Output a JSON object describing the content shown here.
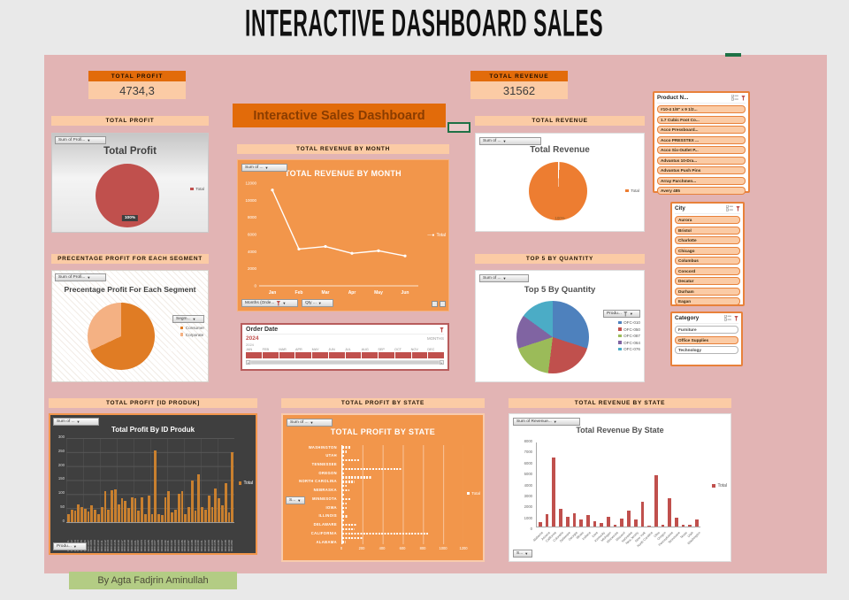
{
  "title": "INTERACTIVE DASHBOARD SALES",
  "banner": "Interactive Sales Dashboard",
  "credit": "By Agta Fadjrin Aminullah",
  "kpi": {
    "profit_label": "TOTAL PROFIT",
    "profit_value": "4734,3",
    "revenue_label": "TOTAL REVENUE",
    "revenue_value": "31562"
  },
  "section_labels": {
    "total_profit": "TOTAL PROFIT",
    "revenue_by_month": "TOTAL REVENUE BY MONTH",
    "total_revenue": "TOTAL REVENUE",
    "segment": "PRECENTAGE PROFIT FOR EACH SEGMENT",
    "top5": "TOP 5 BY QUANTITY",
    "profit_by_id": "Total Profit [ID Produk]",
    "profit_by_state": "Total Profit By State",
    "revenue_by_state": "Total Revenue By State"
  },
  "field_buttons": {
    "sum_of_profit": "Sum of Profi...",
    "sum_of": "Sum of ...",
    "sum_of_revenue": "Sum of Revenue...",
    "months_order": "Months (Orde...",
    "qty": "Qty ...",
    "produ": "Produ...",
    "segm": "Segm...",
    "s": "S..."
  },
  "timeline": {
    "title": "Order Date",
    "selected_period": "2024",
    "granularity": "MONTHS",
    "year": "2024",
    "months": [
      "JAN",
      "FEB",
      "MAR",
      "APR",
      "MAY",
      "JUN",
      "JUL",
      "AUG",
      "SEP",
      "OCT",
      "NOV",
      "DEC"
    ]
  },
  "slicers": {
    "product": {
      "title": "Product N...",
      "items": [
        "#10-4 1/8\" x 9 1/2...",
        "1.7 Cubic Foot Co...",
        "Acco Pressboard...",
        "Acco PRESSTEX ...",
        "Acco Six-Outlet P...",
        "Advantus 10-Dra...",
        "Advantus Push Pins",
        "Array Parchmen...",
        "Avery 485"
      ]
    },
    "city": {
      "title": "City",
      "items": [
        "Aurora",
        "Bristol",
        "Charlotte",
        "Chicago",
        "Columbus",
        "Concord",
        "Decatur",
        "Durham",
        "Eagan"
      ]
    },
    "category": {
      "title": "Category",
      "items": [
        {
          "label": "Furniture",
          "selected": false
        },
        {
          "label": "Office Supplies",
          "selected": true
        },
        {
          "label": "Technology",
          "selected": false
        }
      ]
    }
  },
  "colors": {
    "board_pink": "#e2b4b4",
    "orange_dark": "#E26B0A",
    "orange_mid": "#F2964B",
    "orange_light": "#FBCBA5",
    "red": "#C0504D",
    "excel_green": "#1E7145",
    "footer_green": "#b3cc84",
    "dark_chart_bg": "#3F3F3F"
  },
  "chart_data": [
    {
      "id": "profit-pie",
      "type": "pie",
      "title": "Total Profit",
      "slices": [
        {
          "label": "Total",
          "value": 100,
          "color": "#C0504D"
        }
      ],
      "data_labels": [
        "100%"
      ],
      "legend_position": "right"
    },
    {
      "id": "revenue-by-month",
      "type": "line",
      "title": "TOTAL REVENUE BY MONTH",
      "categories": [
        "Jan",
        "Feb",
        "Mar",
        "Apr",
        "May",
        "Jun"
      ],
      "series": [
        {
          "name": "Total",
          "values": [
            11200,
            4300,
            4600,
            3800,
            4100,
            3500
          ]
        }
      ],
      "ylim": [
        0,
        12000
      ],
      "ytick_step": 2000,
      "line_color": "#FFFFFF",
      "legend_position": "right"
    },
    {
      "id": "revenue-pie",
      "type": "pie",
      "title": "Total Revenue",
      "slices": [
        {
          "label": "Total",
          "value": 100,
          "color": "#ED7D31"
        }
      ],
      "data_labels": [
        "100%"
      ],
      "legend_position": "right"
    },
    {
      "id": "segment-pie",
      "type": "pie",
      "title": "Precentage Profit For Each Segment",
      "slices": [
        {
          "label": "Consumer",
          "value": 68,
          "color": "#E07C24"
        },
        {
          "label": "Corporate",
          "value": 32,
          "color": "#F4B183"
        }
      ],
      "data_labels": [
        "68%",
        "32%"
      ],
      "legend_position": "right"
    },
    {
      "id": "top5-pie",
      "type": "pie",
      "title": "Top 5 By Quantity",
      "slices": [
        {
          "label": "OFC-010",
          "value": 30,
          "color": "#4E81BD"
        },
        {
          "label": "OFC-050",
          "value": 22,
          "color": "#C0504D"
        },
        {
          "label": "OFC-087",
          "value": 18,
          "color": "#9BBB59"
        },
        {
          "label": "OFC-064",
          "value": 15,
          "color": "#8064A2"
        },
        {
          "label": "OFC-076",
          "value": 15,
          "color": "#4BACC6"
        }
      ],
      "legend_position": "right"
    },
    {
      "id": "profit-by-id",
      "type": "bar",
      "title": "Total Profit By ID Produk",
      "categories": [
        "OFC-001",
        "OFC-002",
        "OFC-003",
        "OFC-004",
        "OFC-005",
        "OFC-006",
        "OFC-007",
        "OFC-008",
        "OFC-009",
        "OFC-010",
        "OFC-011",
        "OFC-012",
        "OFC-013",
        "OFC-014",
        "OFC-015",
        "OFC-016",
        "OFC-017",
        "OFC-018",
        "OFC-019",
        "OFC-020",
        "OFC-021",
        "OFC-022",
        "OFC-023",
        "OFC-024",
        "OFC-025",
        "OFC-026",
        "OFC-027",
        "OFC-028",
        "OFC-029",
        "OFC-030",
        "OFC-031",
        "OFC-032",
        "OFC-033",
        "OFC-034",
        "OFC-035",
        "OFC-036",
        "OFC-037",
        "OFC-038",
        "OFC-039",
        "OFC-040",
        "OFC-041",
        "OFC-042",
        "OFC-043",
        "OFC-044",
        "OFC-045",
        "OFC-046",
        "OFC-047",
        "OFC-048",
        "OFC-049",
        "OFC-050"
      ],
      "values": [
        30,
        45,
        40,
        62,
        55,
        48,
        38,
        60,
        45,
        28,
        55,
        110,
        45,
        115,
        118,
        62,
        85,
        75,
        50,
        88,
        85,
        40,
        88,
        28,
        95,
        30,
        255,
        28,
        25,
        90,
        110,
        35,
        45,
        100,
        112,
        30,
        55,
        150,
        40,
        170,
        55,
        45,
        95,
        55,
        120,
        85,
        60,
        140,
        35,
        250
      ],
      "ylim": [
        0,
        300
      ],
      "ytick_step": 50,
      "bar_color": "#C9802F",
      "legend": "Total"
    },
    {
      "id": "profit-by-state",
      "type": "hbar",
      "title": "TOTAL PROFIT BY STATE",
      "categories": [
        "WASHINGTON",
        "",
        "UTAH",
        "",
        "TENNESSEE",
        "",
        "OREGON",
        "",
        "NORTH CAROLINA",
        "",
        "NEBRASKA",
        "",
        "MINNESOTA",
        "",
        "IOWA",
        "",
        "ILLINOIS",
        "",
        "DELAWARE",
        "",
        "CALIFORNIA",
        "",
        "ALABAMA"
      ],
      "values": [
        90,
        45,
        30,
        170,
        20,
        590,
        15,
        290,
        120,
        45,
        70,
        25,
        90,
        40,
        45,
        25,
        60,
        30,
        140,
        120,
        850,
        200,
        35
      ],
      "xlim": [
        0,
        1200
      ],
      "xtick_step": 200,
      "bar_color": "#FFFFFF",
      "legend": "Total"
    },
    {
      "id": "revenue-by-state",
      "type": "bar",
      "title": "Total Revenue By State",
      "categories": [
        "Alabama",
        "Arizona",
        "California",
        "Colorado",
        "Delaware",
        "Georgia",
        "Illinois",
        "Indiana",
        "Iowa",
        "Kentucky",
        "Michigan",
        "Minnesota",
        "Missouri",
        "Nebraska",
        "New Jersey",
        "New York",
        "North Carolina",
        "Ohio",
        "Oregon",
        "Pennsylvania",
        "Tennessee",
        "Texas",
        "Utah",
        "Washington"
      ],
      "values": [
        400,
        1200,
        6600,
        1700,
        900,
        1300,
        700,
        1100,
        500,
        300,
        900,
        200,
        800,
        1500,
        700,
        2400,
        100,
        4900,
        150,
        2700,
        850,
        150,
        200,
        700
      ],
      "ylim": [
        0,
        8000
      ],
      "ytick_step": 1000,
      "bar_color": "#C0504D",
      "legend": "Total"
    }
  ]
}
